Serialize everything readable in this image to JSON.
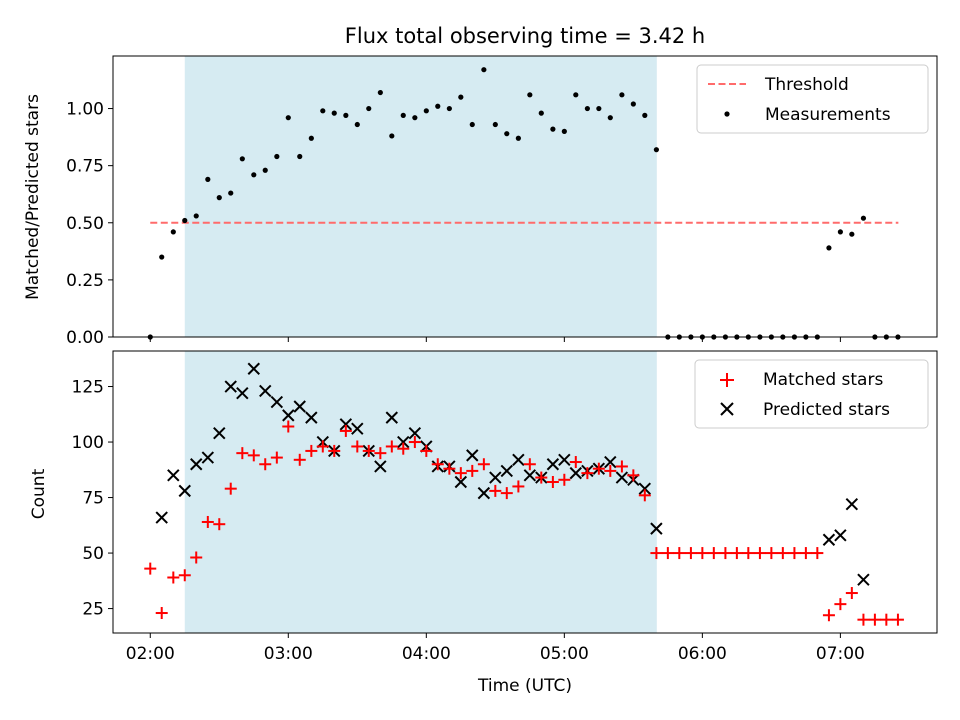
{
  "colors": {
    "shade": "#add8e6",
    "threshold": "#ff6b6b",
    "matched": "#ff0000",
    "predicted": "#000000"
  },
  "chart_data": [
    {
      "type": "scatter",
      "title": "Flux total observing time = 3.42 h",
      "ylabel": "Matched/Predicted stars",
      "xlim_hours": [
        1.73,
        7.7
      ],
      "ylim": [
        0,
        1.23
      ],
      "yticks": [
        0.0,
        0.25,
        0.5,
        0.75,
        1.0
      ],
      "ytick_labels": [
        "0.00",
        "0.25",
        "0.50",
        "0.75",
        "1.00"
      ],
      "shaded_span_hours": [
        2.25,
        5.67
      ],
      "threshold": {
        "value": 0.5,
        "x_range_hours": [
          2.0,
          7.42
        ]
      },
      "legend": {
        "position": "upper right",
        "labels": [
          "Threshold",
          "Measurements"
        ]
      },
      "series": [
        {
          "name": "Measurements",
          "marker": "dot",
          "x_hours": [
            2.0,
            2.083,
            2.167,
            2.25,
            2.333,
            2.417,
            2.5,
            2.583,
            2.667,
            2.75,
            2.833,
            2.917,
            3.0,
            3.083,
            3.167,
            3.25,
            3.333,
            3.417,
            3.5,
            3.583,
            3.667,
            3.75,
            3.833,
            3.917,
            4.0,
            4.083,
            4.167,
            4.25,
            4.333,
            4.417,
            4.5,
            4.583,
            4.667,
            4.75,
            4.833,
            4.917,
            5.0,
            5.083,
            5.167,
            5.25,
            5.333,
            5.417,
            5.5,
            5.583,
            5.667,
            5.75,
            5.833,
            5.917,
            6.0,
            6.083,
            6.167,
            6.25,
            6.333,
            6.417,
            6.5,
            6.583,
            6.667,
            6.75,
            6.833,
            6.917,
            7.0,
            7.083,
            7.167,
            7.25,
            7.333,
            7.417
          ],
          "y": [
            0.0,
            0.35,
            0.46,
            0.51,
            0.53,
            0.69,
            0.61,
            0.63,
            0.78,
            0.71,
            0.73,
            0.79,
            0.96,
            0.79,
            0.87,
            0.99,
            0.98,
            0.97,
            0.93,
            1.0,
            1.07,
            0.88,
            0.97,
            0.96,
            0.99,
            1.01,
            1.0,
            1.05,
            0.93,
            1.17,
            0.93,
            0.89,
            0.87,
            1.06,
            0.98,
            0.91,
            0.9,
            1.06,
            1.0,
            1.0,
            0.96,
            1.06,
            1.02,
            0.97,
            0.82,
            0.0,
            0.0,
            0.0,
            0.0,
            0.0,
            0.0,
            0.0,
            0.0,
            0.0,
            0.0,
            0.0,
            0.0,
            0.0,
            0.0,
            0.39,
            0.46,
            0.45,
            0.52,
            0.0,
            0.0,
            0.0
          ]
        }
      ]
    },
    {
      "type": "scatter",
      "xlabel": "Time (UTC)",
      "ylabel": "Count",
      "xlim_hours": [
        1.73,
        7.7
      ],
      "xticks_hours": [
        2,
        3,
        4,
        5,
        6,
        7
      ],
      "xtick_labels": [
        "02:00",
        "03:00",
        "04:00",
        "05:00",
        "06:00",
        "07:00"
      ],
      "ylim": [
        14,
        141
      ],
      "yticks": [
        25,
        50,
        75,
        100,
        125
      ],
      "ytick_labels": [
        "25",
        "50",
        "75",
        "100",
        "125"
      ],
      "shaded_span_hours": [
        2.25,
        5.67
      ],
      "legend": {
        "position": "upper right",
        "labels": [
          "Matched stars",
          "Predicted stars"
        ]
      },
      "series": [
        {
          "name": "Matched stars",
          "marker": "plus",
          "x_hours": [
            2.0,
            2.083,
            2.167,
            2.25,
            2.333,
            2.417,
            2.5,
            2.583,
            2.667,
            2.75,
            2.833,
            2.917,
            3.0,
            3.083,
            3.167,
            3.25,
            3.333,
            3.417,
            3.5,
            3.583,
            3.667,
            3.75,
            3.833,
            3.917,
            4.0,
            4.083,
            4.167,
            4.25,
            4.333,
            4.417,
            4.5,
            4.583,
            4.667,
            4.75,
            4.833,
            4.917,
            5.0,
            5.083,
            5.167,
            5.25,
            5.333,
            5.417,
            5.5,
            5.583,
            5.667,
            5.75,
            5.833,
            5.917,
            6.0,
            6.083,
            6.167,
            6.25,
            6.333,
            6.417,
            6.5,
            6.583,
            6.667,
            6.75,
            6.833,
            6.917,
            7.0,
            7.083,
            7.167,
            7.25,
            7.333,
            7.417
          ],
          "y": [
            43,
            23,
            39,
            40,
            48,
            64,
            63,
            79,
            95,
            94,
            90,
            93,
            107,
            92,
            96,
            98,
            96,
            105,
            98,
            96,
            95,
            98,
            97,
            100,
            96,
            90,
            88,
            86,
            87,
            90,
            78,
            77,
            80,
            90,
            84,
            82,
            83,
            91,
            86,
            88,
            87,
            89,
            85,
            76,
            50,
            50,
            50,
            50,
            50,
            50,
            50,
            50,
            50,
            50,
            50,
            50,
            50,
            50,
            50,
            22,
            27,
            32,
            20,
            20,
            20,
            20
          ]
        },
        {
          "name": "Predicted stars",
          "marker": "x",
          "x_hours": [
            2.083,
            2.167,
            2.25,
            2.333,
            2.417,
            2.5,
            2.583,
            2.667,
            2.75,
            2.833,
            2.917,
            3.0,
            3.083,
            3.167,
            3.25,
            3.333,
            3.417,
            3.5,
            3.583,
            3.667,
            3.75,
            3.833,
            3.917,
            4.0,
            4.083,
            4.167,
            4.25,
            4.333,
            4.417,
            4.5,
            4.583,
            4.667,
            4.75,
            4.833,
            4.917,
            5.0,
            5.083,
            5.167,
            5.25,
            5.333,
            5.417,
            5.5,
            5.583,
            5.667,
            6.917,
            7.0,
            7.083,
            7.167
          ],
          "y": [
            66,
            85,
            78,
            90,
            93,
            104,
            125,
            122,
            133,
            123,
            118,
            112,
            116,
            111,
            100,
            96,
            108,
            106,
            96,
            89,
            111,
            100,
            104,
            98,
            89,
            89,
            82,
            94,
            77,
            84,
            87,
            92,
            85,
            84,
            90,
            92,
            86,
            87,
            88,
            91,
            84,
            83,
            79,
            61,
            56,
            58,
            72,
            38
          ]
        }
      ]
    }
  ]
}
